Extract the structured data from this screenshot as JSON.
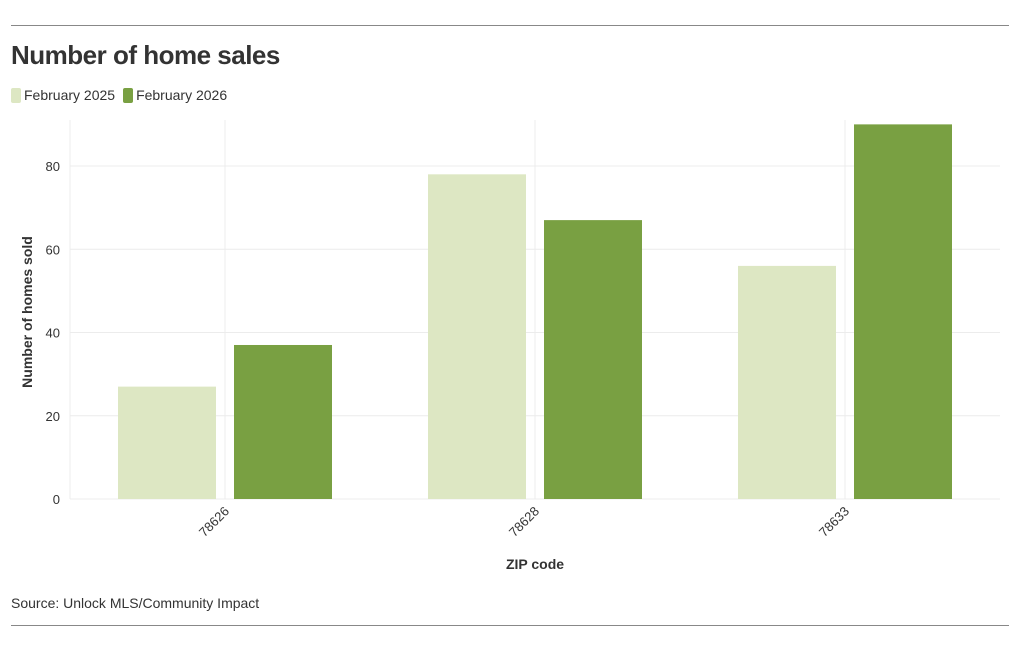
{
  "title": "Number of home sales",
  "source": "Source: Unlock MLS/Community Impact",
  "chart_data": {
    "type": "bar",
    "title": "Number of home sales",
    "xlabel": "ZIP code",
    "ylabel": "Number of homes sold",
    "categories": [
      "78626",
      "78628",
      "78633"
    ],
    "series": [
      {
        "name": "February 2025",
        "color": "#dde7c3",
        "values": [
          27,
          78,
          56
        ]
      },
      {
        "name": "February 2026",
        "color": "#79a042",
        "values": [
          37,
          67,
          90
        ]
      }
    ],
    "yticks": [
      "0",
      "20",
      "40",
      "60",
      "80"
    ],
    "ylim": [
      0,
      91
    ],
    "grid": true,
    "legend": "top-left"
  }
}
